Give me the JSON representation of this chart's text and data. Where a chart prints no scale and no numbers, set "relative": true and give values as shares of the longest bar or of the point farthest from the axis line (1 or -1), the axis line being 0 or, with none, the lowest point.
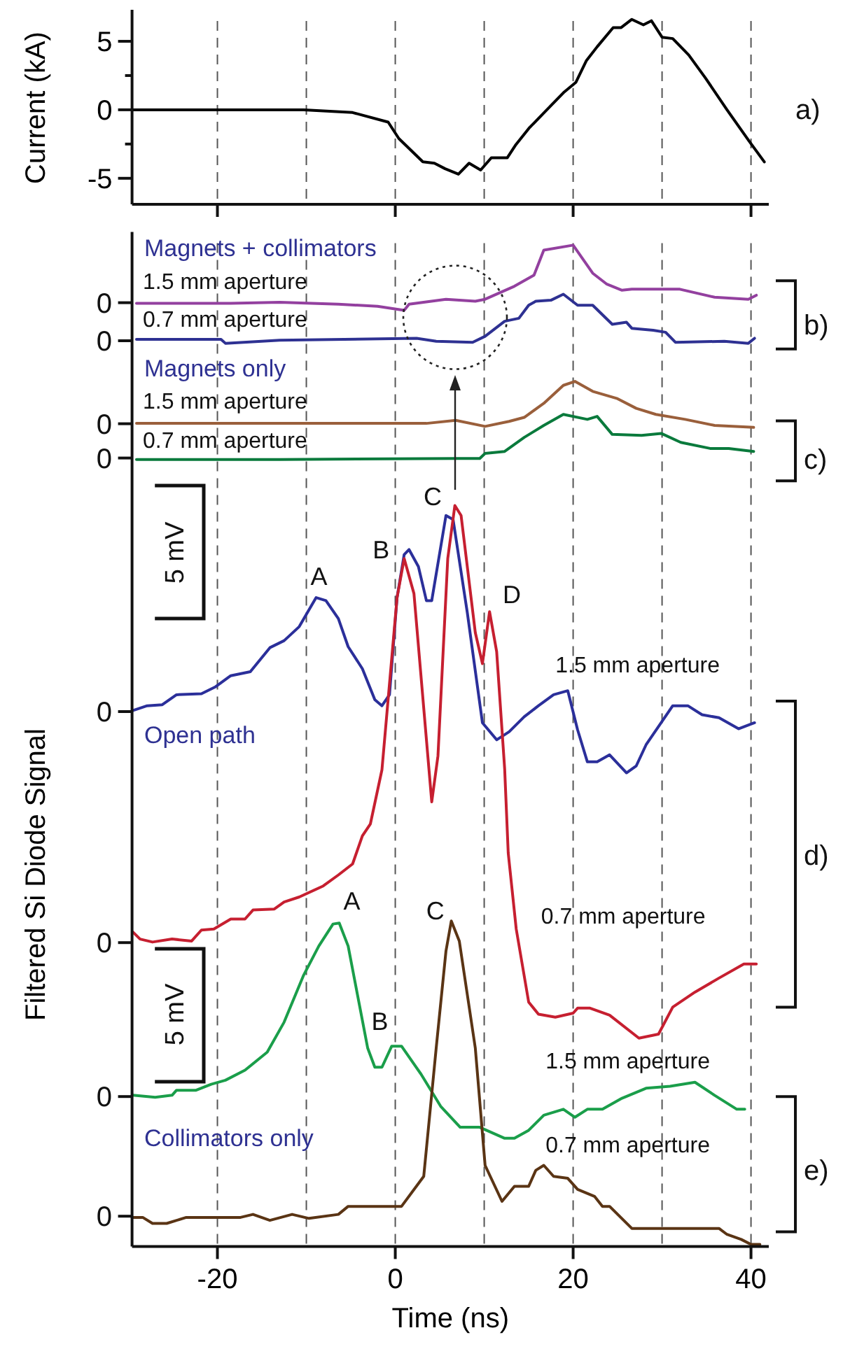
{
  "chart_data": [
    {
      "type": "line",
      "ylabel": "Current (kA)",
      "xlim": [
        -29.6,
        42
      ],
      "ylim": [
        -6.9,
        7.3
      ],
      "xticks": [
        -20,
        {
          "value": -10,
          "label": null
        },
        0,
        {
          "value": 10,
          "label": null
        },
        20,
        {
          "value": 30,
          "label": null
        },
        40
      ],
      "yticks": [
        {
          "value": -5,
          "label": "-5"
        },
        {
          "value": -2.5,
          "label": null
        },
        0,
        {
          "value": 2.5,
          "label": null
        },
        5
      ],
      "tick_labels": "y",
      "grid": "x",
      "annotations": [
        "a)"
      ],
      "series": [
        {
          "color": "#000000",
          "x": [
            -29.5,
            -10.3,
            -4.8,
            -0.8,
            0.4,
            3.1,
            4.4,
            5.6,
            7.1,
            8.3,
            9.6,
            10.8,
            12.6,
            13.5,
            15.1,
            17.2,
            19.0,
            20.3,
            21.5,
            22.7,
            24.5,
            25.4,
            26.6,
            27.9,
            28.8,
            30.0,
            31.2,
            33.0,
            34.9,
            37.3,
            39.8,
            41.5
          ],
          "values": [
            0,
            0,
            -0.2,
            -0.9,
            -2.1,
            -3.8,
            -3.9,
            -4.3,
            -4.7,
            -3.9,
            -4.4,
            -3.5,
            -3.5,
            -2.6,
            -1.3,
            0.1,
            1.3,
            2.0,
            3.6,
            4.6,
            6.0,
            6.0,
            6.6,
            6.2,
            6.5,
            5.3,
            5.2,
            4.0,
            2.3,
            0.0,
            -2.3,
            -3.8
          ]
        }
      ]
    },
    {
      "type": "line",
      "relative": true,
      "xlabel": "Time (ns)",
      "ylabel": "Filtered Si Diode Signal",
      "xlim": [
        -29.6,
        42
      ],
      "xticks": [
        {
          "value": -20,
          "label": "-20"
        },
        {
          "value": -10,
          "label": null
        },
        0,
        {
          "value": 10,
          "label": null
        },
        20,
        {
          "value": 30,
          "label": null
        },
        40
      ],
      "grid": "x",
      "annotations": [
        "Magnets + collimators",
        "Magnets only",
        "Open path",
        "Collimators only",
        "b)",
        "c)",
        "d)",
        "e)",
        "5 mV",
        "5 mV",
        "A",
        "B",
        "C",
        "D",
        "A",
        "B",
        "C",
        "0",
        "0",
        "0",
        "0",
        "0",
        "0",
        "0",
        "0"
      ],
      "series": [
        {
          "name": "1.5 mm aperture",
          "color": "#93409f",
          "x": [
            -29.1,
            -18.5,
            -13.0,
            -6.4,
            -2.0,
            1.0,
            1.55,
            5.7,
            9.0,
            10.1,
            13.4,
            15.6,
            16.7,
            20.0,
            22.2,
            23.8,
            25.5,
            26.6,
            32.0,
            35.9,
            39.7,
            40.6
          ],
          "values": [
            0.942,
            0.942,
            0.943,
            0.941,
            0.939,
            0.935,
            0.941,
            0.946,
            0.944,
            0.946,
            0.959,
            0.97,
            0.995,
            1,
            0.972,
            0.961,
            0.955,
            0.956,
            0.956,
            0.948,
            0.946,
            0.95
          ]
        },
        {
          "name": "0.7 mm aperture",
          "color": "#2e3192",
          "x": [
            -29.1,
            -19.6,
            -19.1,
            -13.0,
            2.4,
            4.6,
            8.7,
            10.1,
            12.3,
            13.9,
            15.0,
            15.8,
            17.5,
            18.9,
            20.5,
            22.2,
            24.4,
            26.0,
            26.6,
            29.0,
            30.4,
            31.5,
            37.0,
            39.7,
            40.4
          ],
          "values": [
            0.906,
            0.906,
            0.902,
            0.905,
            0.907,
            0.904,
            0.903,
            0.909,
            0.924,
            0.927,
            0.94,
            0.944,
            0.945,
            0.951,
            0.94,
            0.94,
            0.921,
            0.923,
            0.917,
            0.915,
            0.913,
            0.903,
            0.904,
            0.902,
            0.907
          ]
        },
        {
          "name": "1.5 mm aperture",
          "color": "#9a5f3b",
          "x": [
            -29.1,
            -18.5,
            3.5,
            6.8,
            10.1,
            12.8,
            14.5,
            16.7,
            18.9,
            20.2,
            22.2,
            24.9,
            27.1,
            29.3,
            32.6,
            35.9,
            40.3
          ],
          "values": [
            0.822,
            0.822,
            0.822,
            0.825,
            0.819,
            0.824,
            0.828,
            0.842,
            0.86,
            0.864,
            0.854,
            0.847,
            0.837,
            0.831,
            0.826,
            0.82,
            0.818
          ]
        },
        {
          "name": "0.7 mm aperture",
          "color": "#0a7a3c",
          "x": [
            -29.1,
            -13.0,
            6.8,
            9.5,
            10.1,
            12.3,
            14.5,
            16.7,
            18.9,
            21.6,
            22.7,
            24.4,
            27.7,
            29.9,
            32.1,
            35.4,
            37.5,
            40.3
          ],
          "values": [
            0.786,
            0.786,
            0.787,
            0.787,
            0.792,
            0.794,
            0.808,
            0.82,
            0.831,
            0.826,
            0.829,
            0.811,
            0.81,
            0.812,
            0.803,
            0.797,
            0.797,
            0.794
          ]
        },
        {
          "name": "1.5 mm aperture",
          "color": "#2b2f9a",
          "x": [
            -29.6,
            -27.9,
            -26.2,
            -24.6,
            -21.8,
            -20.2,
            -18.5,
            -16.3,
            -14.1,
            -12.5,
            -10.8,
            -8.9,
            -7.8,
            -6.4,
            -5.3,
            -3.7,
            -2.3,
            -1.5,
            -0.65,
            0.2,
            1.0,
            1.55,
            2.6,
            3.5,
            4.1,
            5.7,
            6.5,
            8.1,
            9.8,
            11.4,
            12.8,
            14.5,
            16.1,
            17.8,
            19.4,
            20.5,
            21.6,
            22.7,
            24.1,
            26.0,
            27.1,
            28.2,
            31.2,
            32.9,
            34.5,
            36.4,
            38.6,
            40.4
          ],
          "values": [
            0.535,
            0.54,
            0.541,
            0.551,
            0.552,
            0.559,
            0.57,
            0.574,
            0.598,
            0.605,
            0.619,
            0.648,
            0.645,
            0.627,
            0.599,
            0.577,
            0.546,
            0.54,
            0.551,
            0.648,
            0.691,
            0.696,
            0.679,
            0.645,
            0.645,
            0.73,
            0.726,
            0.633,
            0.523,
            0.506,
            0.514,
            0.529,
            0.54,
            0.551,
            0.555,
            0.516,
            0.484,
            0.484,
            0.491,
            0.473,
            0.48,
            0.501,
            0.54,
            0.54,
            0.531,
            0.528,
            0.517,
            0.523
          ]
        },
        {
          "name": "0.7 mm aperture",
          "color": "#c61f30",
          "x": [
            -29.5,
            -28.7,
            -27.3,
            -25.1,
            -22.9,
            -21.8,
            -20.4,
            -18.5,
            -16.9,
            -16.0,
            -13.6,
            -12.5,
            -10.8,
            -8.1,
            -6.4,
            -4.8,
            -3.7,
            -2.8,
            -1.5,
            0.2,
            1.0,
            2.1,
            4.1,
            4.8,
            5.9,
            6.7,
            7.4,
            9.0,
            9.8,
            10.6,
            11.4,
            12.3,
            12.7,
            13.6,
            15.0,
            16.1,
            18.0,
            20.0,
            20.5,
            21.9,
            24.1,
            27.4,
            29.6,
            31.2,
            33.7,
            36.4,
            39.2,
            40.6
          ],
          "values": [
            0.314,
            0.307,
            0.304,
            0.307,
            0.305,
            0.316,
            0.317,
            0.327,
            0.327,
            0.336,
            0.337,
            0.344,
            0.349,
            0.36,
            0.371,
            0.382,
            0.41,
            0.422,
            0.476,
            0.648,
            0.687,
            0.652,
            0.444,
            0.49,
            0.687,
            0.74,
            0.73,
            0.613,
            0.582,
            0.634,
            0.594,
            0.477,
            0.393,
            0.317,
            0.244,
            0.232,
            0.229,
            0.233,
            0.238,
            0.238,
            0.231,
            0.208,
            0.212,
            0.239,
            0.254,
            0.268,
            0.282,
            0.282
          ]
        },
        {
          "name": "1.5 mm aperture",
          "color": "#1a9e4a",
          "x": [
            -29.5,
            -27.0,
            -25.1,
            -24.6,
            -22.4,
            -20.7,
            -19.1,
            -16.9,
            -14.4,
            -12.5,
            -10.3,
            -8.6,
            -7.0,
            -6.3,
            -5.3,
            -3.1,
            -2.3,
            -1.5,
            -0.4,
            0.7,
            2.9,
            5.1,
            7.3,
            9.5,
            12.3,
            13.4,
            15.0,
            16.7,
            18.9,
            20.2,
            21.6,
            23.3,
            25.5,
            28.2,
            30.9,
            33.7,
            35.9,
            38.4,
            39.3
          ],
          "values": [
            0.151,
            0.149,
            0.151,
            0.156,
            0.156,
            0.162,
            0.166,
            0.176,
            0.194,
            0.224,
            0.271,
            0.3,
            0.322,
            0.323,
            0.3,
            0.198,
            0.179,
            0.179,
            0.2,
            0.2,
            0.172,
            0.14,
            0.119,
            0.119,
            0.108,
            0.108,
            0.116,
            0.131,
            0.137,
            0.129,
            0.137,
            0.137,
            0.148,
            0.158,
            0.16,
            0.164,
            0.151,
            0.137,
            0.137
          ]
        },
        {
          "name": "0.7 mm aperture",
          "color": "#5a3414",
          "x": [
            -29.6,
            -28.4,
            -27.3,
            -25.7,
            -23.5,
            -17.4,
            -16.0,
            -14.1,
            -11.6,
            -9.7,
            -6.4,
            -5.3,
            0.7,
            3.2,
            4.6,
            5.7,
            6.3,
            7.2,
            9.0,
            10.1,
            12.0,
            13.4,
            15.0,
            15.8,
            16.7,
            17.8,
            19.4,
            20.5,
            22.4,
            23.3,
            24.1,
            26.6,
            36.4,
            37.3,
            38.9,
            40.0,
            41.0
          ],
          "values": [
            0.029,
            0.029,
            0.023,
            0.023,
            0.029,
            0.029,
            0.032,
            0.026,
            0.032,
            0.028,
            0.032,
            0.04,
            0.04,
            0.07,
            0.198,
            0.295,
            0.325,
            0.305,
            0.198,
            0.081,
            0.045,
            0.06,
            0.06,
            0.076,
            0.081,
            0.07,
            0.068,
            0.057,
            0.05,
            0.04,
            0.04,
            0.018,
            0.018,
            0.012,
            0.007,
            0.002,
            0.002
          ]
        }
      ]
    }
  ]
}
